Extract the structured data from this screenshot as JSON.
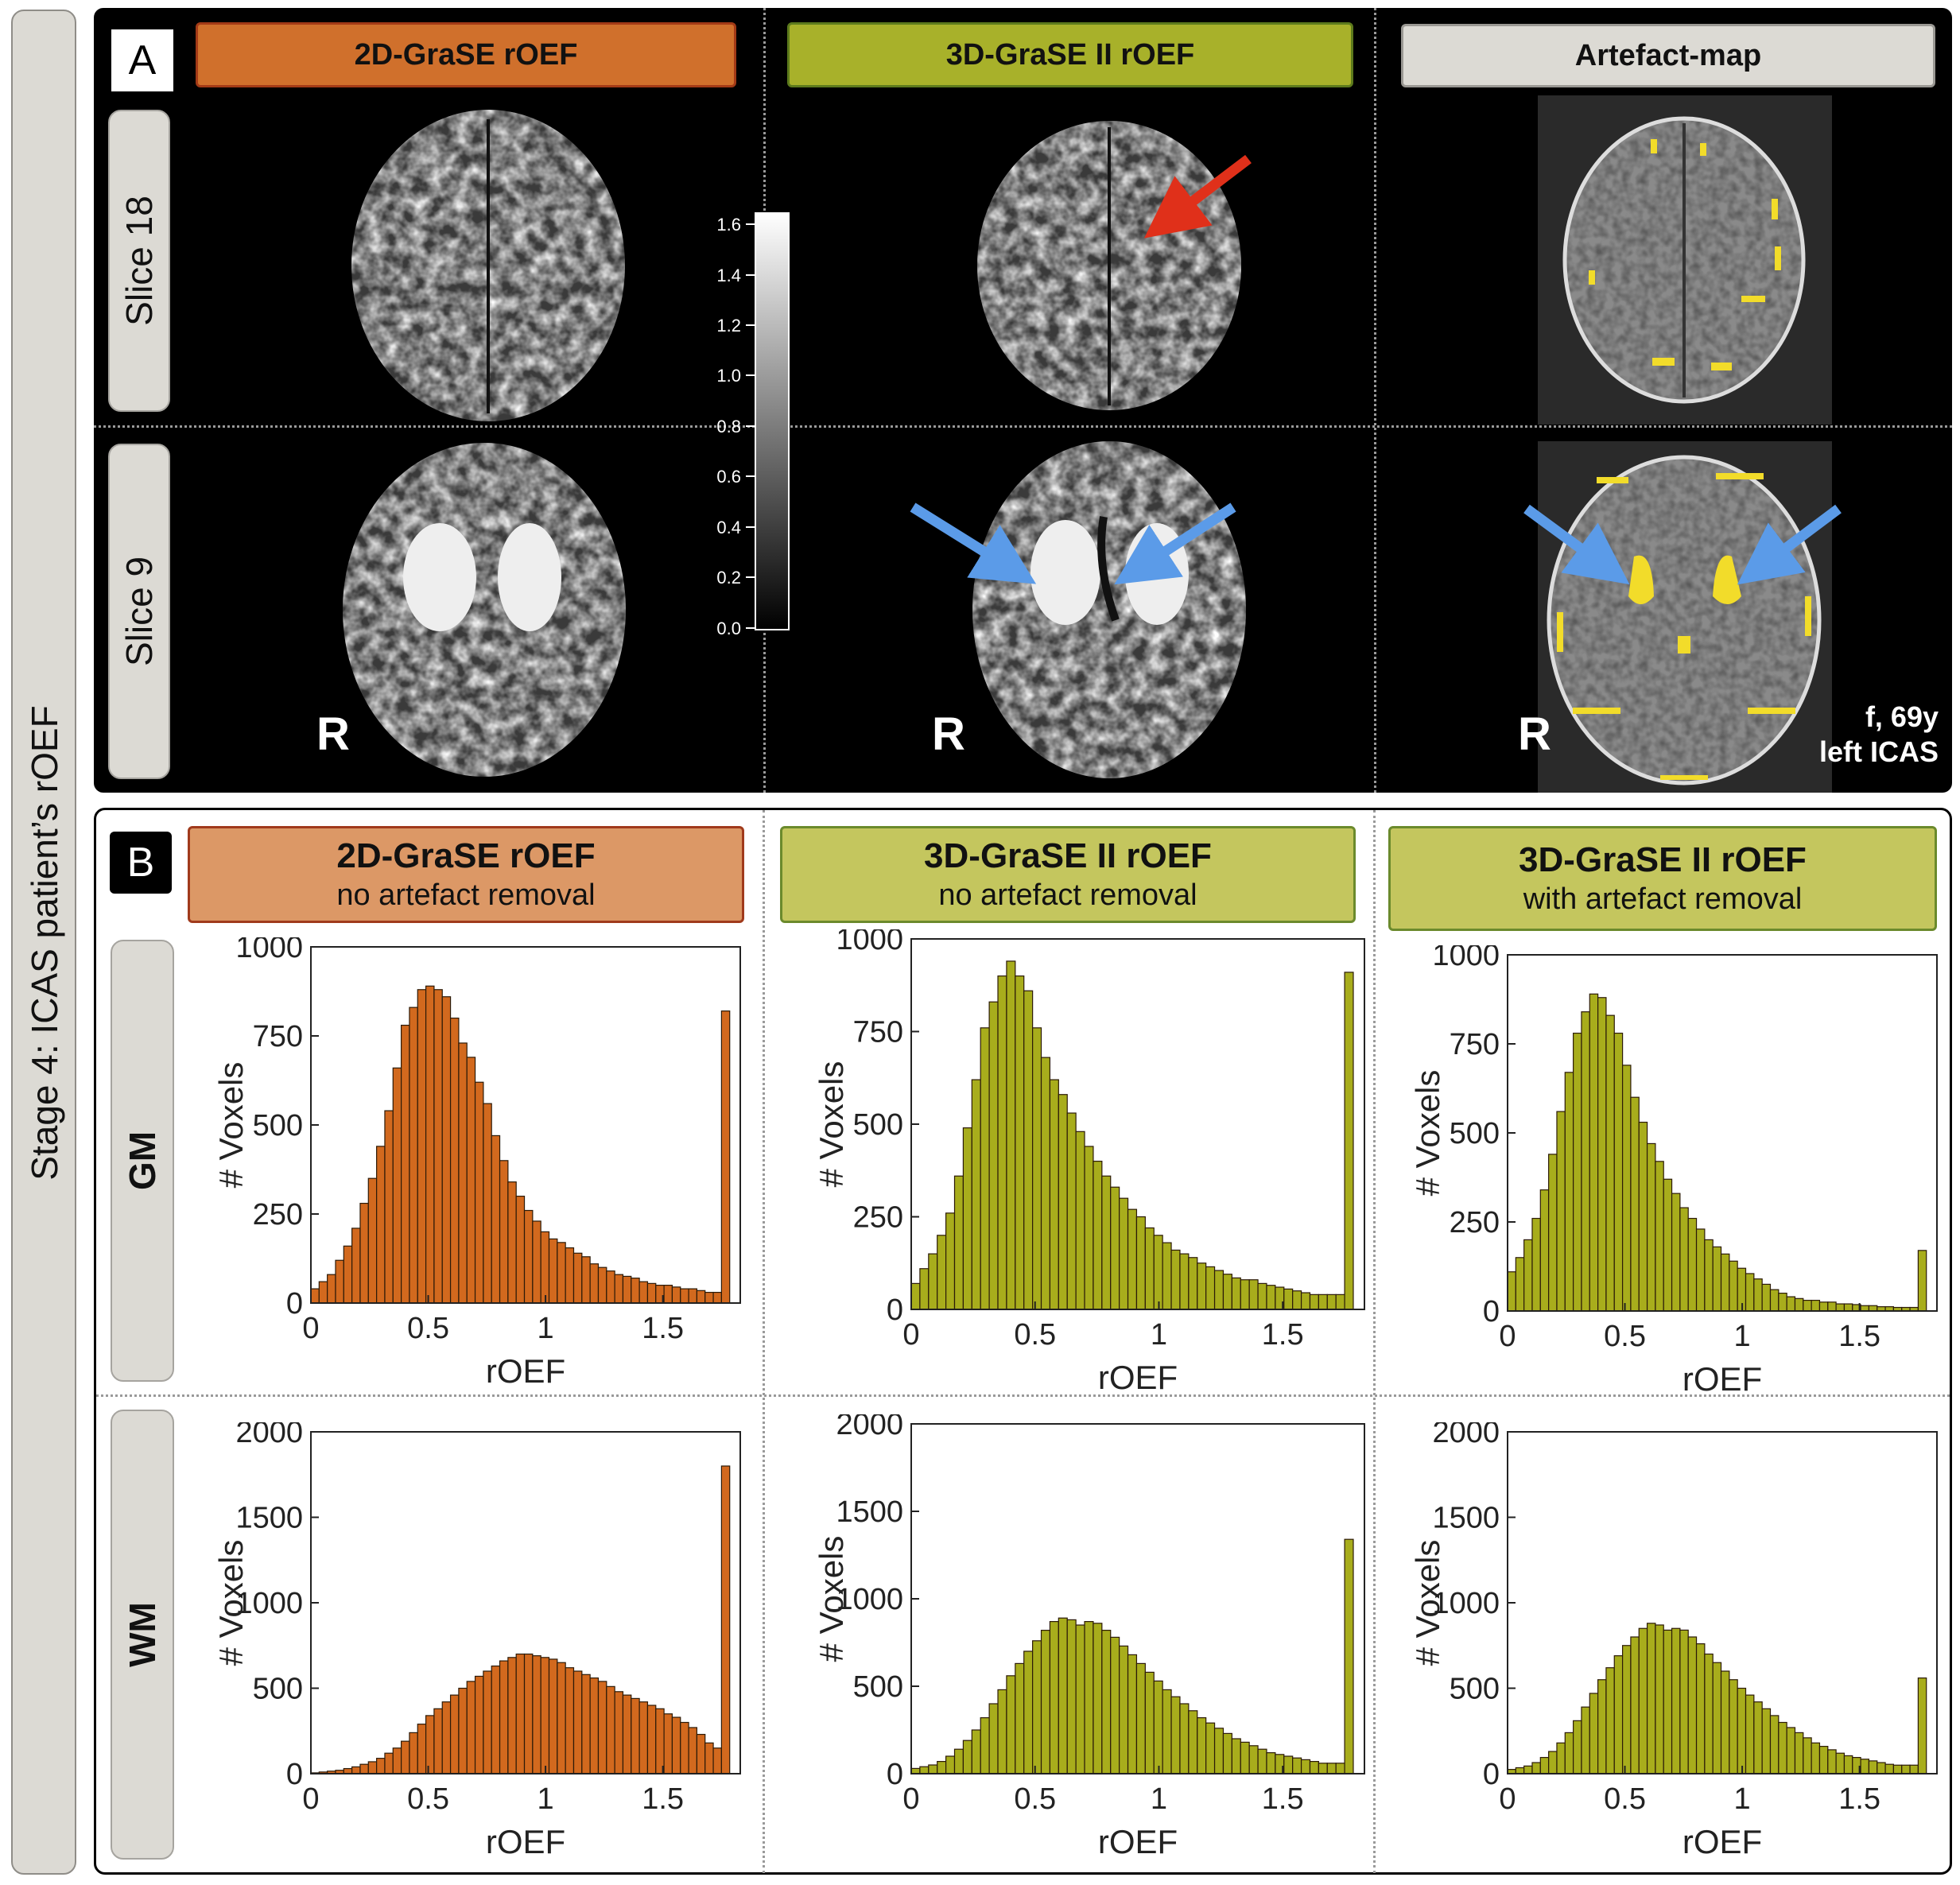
{
  "stage_title": "Stage 4: ICAS patient’s rOEF",
  "panel_a": {
    "letter": "A",
    "columns": [
      "2D-GraSE rOEF",
      "3D-GraSE II rOEF",
      "Artefact-map"
    ],
    "rows": [
      "Slice 18",
      "Slice 9"
    ],
    "orientation_label": "R",
    "patient_sex_age": "f, 69y",
    "patient_condition": "left ICAS",
    "colorbar_ticks": [
      "1.6",
      "1.4",
      "1.2",
      "1.0",
      "0.8",
      "0.6",
      "0.4",
      "0.2",
      "0.0"
    ]
  },
  "panel_b": {
    "letter": "B",
    "columns": [
      {
        "title": "2D-GraSE rOEF",
        "subtitle": "no artefact removal"
      },
      {
        "title": "3D-GraSE II rOEF",
        "subtitle": "no artefact removal"
      },
      {
        "title": "3D-GraSE II rOEF",
        "subtitle": "with artefact removal"
      }
    ],
    "rows": [
      "GM",
      "WM"
    ]
  },
  "colors": {
    "orange_bar": "#d2691e",
    "green_bar": "#a8ad1c",
    "red_arrow": "#e0301a",
    "blue_arrow": "#5b9be8",
    "artefact_yellow": "#f2dc2a"
  },
  "chart_data": [
    {
      "type": "bar",
      "id": "gm-2d",
      "xlabel": "rOEF",
      "ylabel": "# Voxels",
      "xlim": [
        0,
        1.83
      ],
      "ylim": [
        0,
        1000
      ],
      "xticks": [
        0,
        0.5,
        1,
        1.5
      ],
      "xtick_labels": [
        "0",
        "0.5",
        "1",
        "1.5"
      ],
      "yticks": [
        0,
        250,
        500,
        750,
        1000
      ],
      "ytick_labels": [
        "0",
        "250",
        "500",
        "750",
        "1000"
      ],
      "bin_width": 0.035,
      "color": "#d2691e",
      "values": [
        40,
        60,
        80,
        120,
        160,
        210,
        280,
        350,
        440,
        540,
        660,
        780,
        830,
        880,
        890,
        880,
        860,
        800,
        730,
        690,
        620,
        560,
        470,
        400,
        340,
        300,
        260,
        230,
        200,
        180,
        170,
        155,
        140,
        130,
        110,
        100,
        90,
        80,
        75,
        70,
        60,
        55,
        50,
        50,
        45,
        40,
        40,
        35,
        30,
        30,
        820
      ]
    },
    {
      "type": "bar",
      "id": "gm-3d",
      "xlabel": "rOEF",
      "ylabel": "# Voxels",
      "xlim": [
        0,
        1.83
      ],
      "ylim": [
        0,
        1000
      ],
      "xticks": [
        0,
        0.5,
        1,
        1.5
      ],
      "xtick_labels": [
        "0",
        "0.5",
        "1",
        "1.5"
      ],
      "yticks": [
        0,
        250,
        500,
        750,
        1000
      ],
      "ytick_labels": [
        "0",
        "250",
        "500",
        "750",
        "1000"
      ],
      "bin_width": 0.035,
      "color": "#a8ad1c",
      "values": [
        70,
        110,
        150,
        200,
        260,
        360,
        490,
        620,
        760,
        830,
        900,
        940,
        900,
        860,
        760,
        680,
        620,
        580,
        530,
        480,
        440,
        400,
        360,
        330,
        300,
        270,
        250,
        220,
        200,
        180,
        160,
        150,
        140,
        125,
        115,
        105,
        95,
        85,
        80,
        80,
        70,
        65,
        60,
        55,
        50,
        45,
        40,
        40,
        40,
        40,
        910
      ]
    },
    {
      "type": "bar",
      "id": "gm-3d-art",
      "xlabel": "rOEF",
      "ylabel": "# Voxels",
      "xlim": [
        0,
        1.83
      ],
      "ylim": [
        0,
        1000
      ],
      "xticks": [
        0,
        0.5,
        1,
        1.5
      ],
      "xtick_labels": [
        "0",
        "0.5",
        "1",
        "1.5"
      ],
      "yticks": [
        0,
        250,
        500,
        750,
        1000
      ],
      "ytick_labels": [
        "0",
        "250",
        "500",
        "750",
        "1000"
      ],
      "bin_width": 0.035,
      "color": "#a8ad1c",
      "values": [
        110,
        150,
        200,
        260,
        340,
        440,
        560,
        670,
        780,
        840,
        890,
        880,
        830,
        780,
        690,
        600,
        530,
        470,
        420,
        370,
        330,
        290,
        260,
        230,
        200,
        180,
        160,
        140,
        120,
        105,
        90,
        75,
        60,
        50,
        40,
        35,
        30,
        30,
        25,
        25,
        20,
        20,
        18,
        15,
        15,
        12,
        12,
        10,
        10,
        10,
        170
      ]
    },
    {
      "type": "bar",
      "id": "wm-2d",
      "xlabel": "rOEF",
      "ylabel": "# Voxels",
      "xlim": [
        0,
        1.83
      ],
      "ylim": [
        0,
        2000
      ],
      "xticks": [
        0,
        0.5,
        1,
        1.5
      ],
      "xtick_labels": [
        "0",
        "0.5",
        "1",
        "1.5"
      ],
      "yticks": [
        0,
        500,
        1000,
        1500,
        2000
      ],
      "ytick_labels": [
        "0",
        "500",
        "1000",
        "1500",
        "2000"
      ],
      "bin_width": 0.035,
      "color": "#d2691e",
      "values": [
        5,
        10,
        15,
        20,
        30,
        40,
        55,
        70,
        90,
        120,
        150,
        190,
        240,
        290,
        340,
        380,
        420,
        460,
        500,
        540,
        570,
        600,
        630,
        660,
        680,
        700,
        700,
        690,
        680,
        670,
        650,
        620,
        600,
        580,
        560,
        540,
        510,
        480,
        460,
        440,
        420,
        400,
        380,
        350,
        330,
        300,
        270,
        230,
        180,
        150,
        1800
      ]
    },
    {
      "type": "bar",
      "id": "wm-3d",
      "xlabel": "rOEF",
      "ylabel": "# Voxels",
      "xlim": [
        0,
        1.83
      ],
      "ylim": [
        0,
        2000
      ],
      "xticks": [
        0,
        0.5,
        1,
        1.5
      ],
      "xtick_labels": [
        "0",
        "0.5",
        "1",
        "1.5"
      ],
      "yticks": [
        0,
        500,
        1000,
        1500,
        2000
      ],
      "ytick_labels": [
        "0",
        "500",
        "1000",
        "1500",
        "2000"
      ],
      "bin_width": 0.035,
      "color": "#a8ad1c",
      "values": [
        30,
        40,
        50,
        70,
        100,
        140,
        190,
        250,
        320,
        400,
        480,
        560,
        630,
        700,
        760,
        820,
        870,
        890,
        880,
        850,
        870,
        860,
        820,
        780,
        730,
        680,
        630,
        580,
        530,
        480,
        440,
        400,
        360,
        320,
        290,
        260,
        230,
        200,
        180,
        160,
        140,
        120,
        110,
        100,
        90,
        80,
        70,
        60,
        60,
        60,
        1340
      ]
    },
    {
      "type": "bar",
      "id": "wm-3d-art",
      "xlabel": "rOEF",
      "ylabel": "# Voxels",
      "xlim": [
        0,
        1.83
      ],
      "ylim": [
        0,
        2000
      ],
      "xticks": [
        0,
        0.5,
        1,
        1.5
      ],
      "xtick_labels": [
        "0",
        "0.5",
        "1",
        "1.5"
      ],
      "yticks": [
        0,
        500,
        1000,
        1500,
        2000
      ],
      "ytick_labels": [
        "0",
        "500",
        "1000",
        "1500",
        "2000"
      ],
      "bin_width": 0.035,
      "color": "#a8ad1c",
      "values": [
        25,
        35,
        45,
        65,
        95,
        130,
        180,
        240,
        310,
        390,
        470,
        550,
        620,
        690,
        750,
        800,
        850,
        880,
        870,
        840,
        850,
        840,
        800,
        760,
        700,
        650,
        600,
        550,
        500,
        460,
        420,
        380,
        340,
        300,
        270,
        240,
        210,
        180,
        160,
        140,
        120,
        105,
        95,
        85,
        75,
        65,
        55,
        50,
        50,
        50,
        560
      ]
    }
  ]
}
